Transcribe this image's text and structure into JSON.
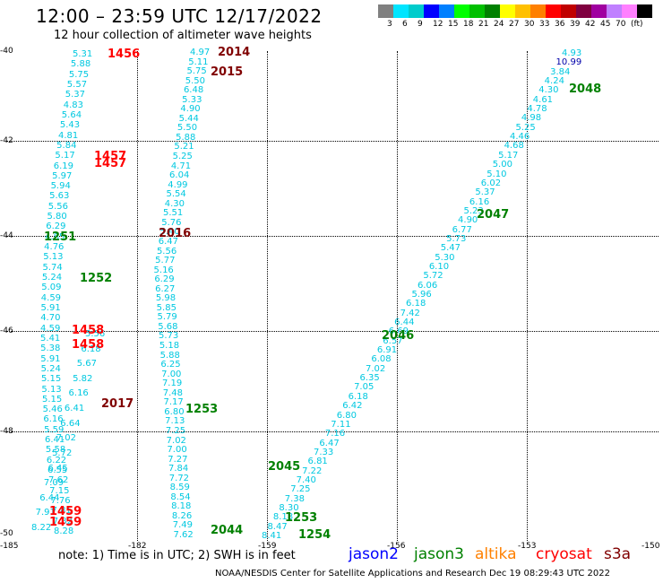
{
  "title": "12:00 – 23:59 UTC 12/17/2022",
  "subtitle": "12 hour collection of altimeter wave heights",
  "colorbar": {
    "colors": [
      "#808080",
      "#00e5ff",
      "#00cccc",
      "#0000ff",
      "#0080ff",
      "#00ff00",
      "#00c000",
      "#008000",
      "#ffff00",
      "#ffc000",
      "#ff8000",
      "#ff0000",
      "#c00000",
      "#800040",
      "#a000a0",
      "#c080ff",
      "#ff80ff",
      "#000000"
    ],
    "labels": [
      "3",
      "6",
      "9",
      "12",
      "15",
      "18",
      "21",
      "24",
      "27",
      "30",
      "33",
      "36",
      "39",
      "42",
      "45",
      "70",
      "(ft)"
    ]
  },
  "axes": {
    "y_ticks": [
      "-40",
      "-42",
      "-44",
      "-46",
      "-48",
      "-50"
    ],
    "x_ticks": [
      "-185",
      "-182",
      "-159",
      "-156",
      "-153",
      "-150"
    ]
  },
  "swh_values": {
    "track_1456_1459": [
      "5.31",
      "5.88",
      "5.75",
      "5.57",
      "5.37",
      "4.83",
      "5.64",
      "5.43",
      "4.81",
      "5.84",
      "5.17",
      "6.19",
      "5.97",
      "5.94",
      "5.63",
      "5.56",
      "5.80",
      "6.29",
      "4.85",
      "4.76",
      "5.13",
      "5.74",
      "5.24",
      "5.09",
      "4.59",
      "5.91",
      "4.70",
      "4.59",
      "5.41",
      "5.38",
      "5.91",
      "5.24",
      "5.15",
      "5.13",
      "5.15",
      "5.46",
      "6.16",
      "5.59",
      "6.41",
      "5.58",
      "6.22",
      "6.55",
      "7.62",
      "7.15",
      "7.76",
      "7.81",
      "7.82",
      "8.28"
    ],
    "track_2014_2017": [
      "4.97",
      "5.11",
      "5.75",
      "5.50",
      "6.48",
      "5.33",
      "4.90",
      "5.44",
      "5.50",
      "5.88",
      "5.21",
      "5.25",
      "4.71",
      "6.04",
      "4.99",
      "5.54",
      "4.30",
      "5.51",
      "5.76",
      "5.40",
      "6.47",
      "5.56",
      "5.77",
      "5.16",
      "6.29",
      "6.27",
      "5.98",
      "5.85",
      "5.79",
      "5.68",
      "5.73",
      "5.18",
      "5.88",
      "6.25",
      "7.00",
      "7.19",
      "7.48",
      "7.17",
      "6.80",
      "7.13",
      "7.25",
      "7.02",
      "7.00",
      "7.27",
      "7.84",
      "7.72",
      "8.59",
      "8.54",
      "8.18",
      "8.26",
      "7.49",
      "7.62"
    ],
    "track_1251_1254": [
      "5.56",
      "6.18",
      "5.67",
      "5.82",
      "6.16",
      "6.41",
      "6.64",
      "7.02",
      "5.72",
      "6.45",
      "7.09",
      "6.44",
      "7.91",
      "8.22"
    ],
    "track_2044_2048": [
      "4.93",
      "10.99",
      "3.84",
      "4.24",
      "4.30",
      "4.61",
      "4.78",
      "4.98",
      "5.25",
      "4.46",
      "4.68",
      "5.17",
      "5.00",
      "5.10",
      "6.02",
      "5.37",
      "6.16",
      "5.23",
      "4.90",
      "6.77",
      "5.73",
      "5.47",
      "5.30",
      "6.10",
      "5.72",
      "6.06",
      "5.96",
      "6.18",
      "7.42",
      "6.44",
      "6.69",
      "6.57",
      "6.91",
      "6.08",
      "7.02",
      "6.35",
      "7.05",
      "6.18",
      "6.42",
      "6.80",
      "7.11",
      "7.16",
      "6.47",
      "7.33",
      "6.81",
      "7.22",
      "7.40",
      "7.25",
      "7.38",
      "8.30",
      "8.18",
      "8.47",
      "8.41"
    ]
  },
  "time_labels": [
    {
      "text": "1456",
      "color": "#ff0000"
    },
    {
      "text": "2014",
      "color": "#800000"
    },
    {
      "text": "2015",
      "color": "#800000"
    },
    {
      "text": "1457",
      "color": "#ff0000"
    },
    {
      "text": "1457",
      "color": "#ff0000"
    },
    {
      "text": "2016",
      "color": "#800000"
    },
    {
      "text": "1251",
      "color": "#008000"
    },
    {
      "text": "1252",
      "color": "#008000"
    },
    {
      "text": "1458",
      "color": "#ff0000"
    },
    {
      "text": "1458",
      "color": "#ff0000"
    },
    {
      "text": "2017",
      "color": "#800000"
    },
    {
      "text": "1253",
      "color": "#008000"
    },
    {
      "text": "1459",
      "color": "#ff0000"
    },
    {
      "text": "1459",
      "color": "#ff0000"
    },
    {
      "text": "2044",
      "color": "#008000"
    },
    {
      "text": "2045",
      "color": "#008000"
    },
    {
      "text": "1253",
      "color": "#008000"
    },
    {
      "text": "1254",
      "color": "#008000"
    },
    {
      "text": "2046",
      "color": "#008000"
    },
    {
      "text": "2047",
      "color": "#008000"
    },
    {
      "text": "2048",
      "color": "#008000"
    }
  ],
  "note": "note:  1) Time is in UTC;  2) SWH is in feet",
  "satellites": [
    {
      "name": "jason2",
      "color": "#0000ff"
    },
    {
      "name": "jason3",
      "color": "#008000"
    },
    {
      "name": "altika",
      "color": "#ff8000"
    },
    {
      "name": "cryosat",
      "color": "#ff0000"
    },
    {
      "name": "s3a",
      "color": "#800000"
    }
  ],
  "footer": "NOAA/NESDIS Center for Satellite Applications and Research    Dec 19 08:29:43 UTC 2022"
}
